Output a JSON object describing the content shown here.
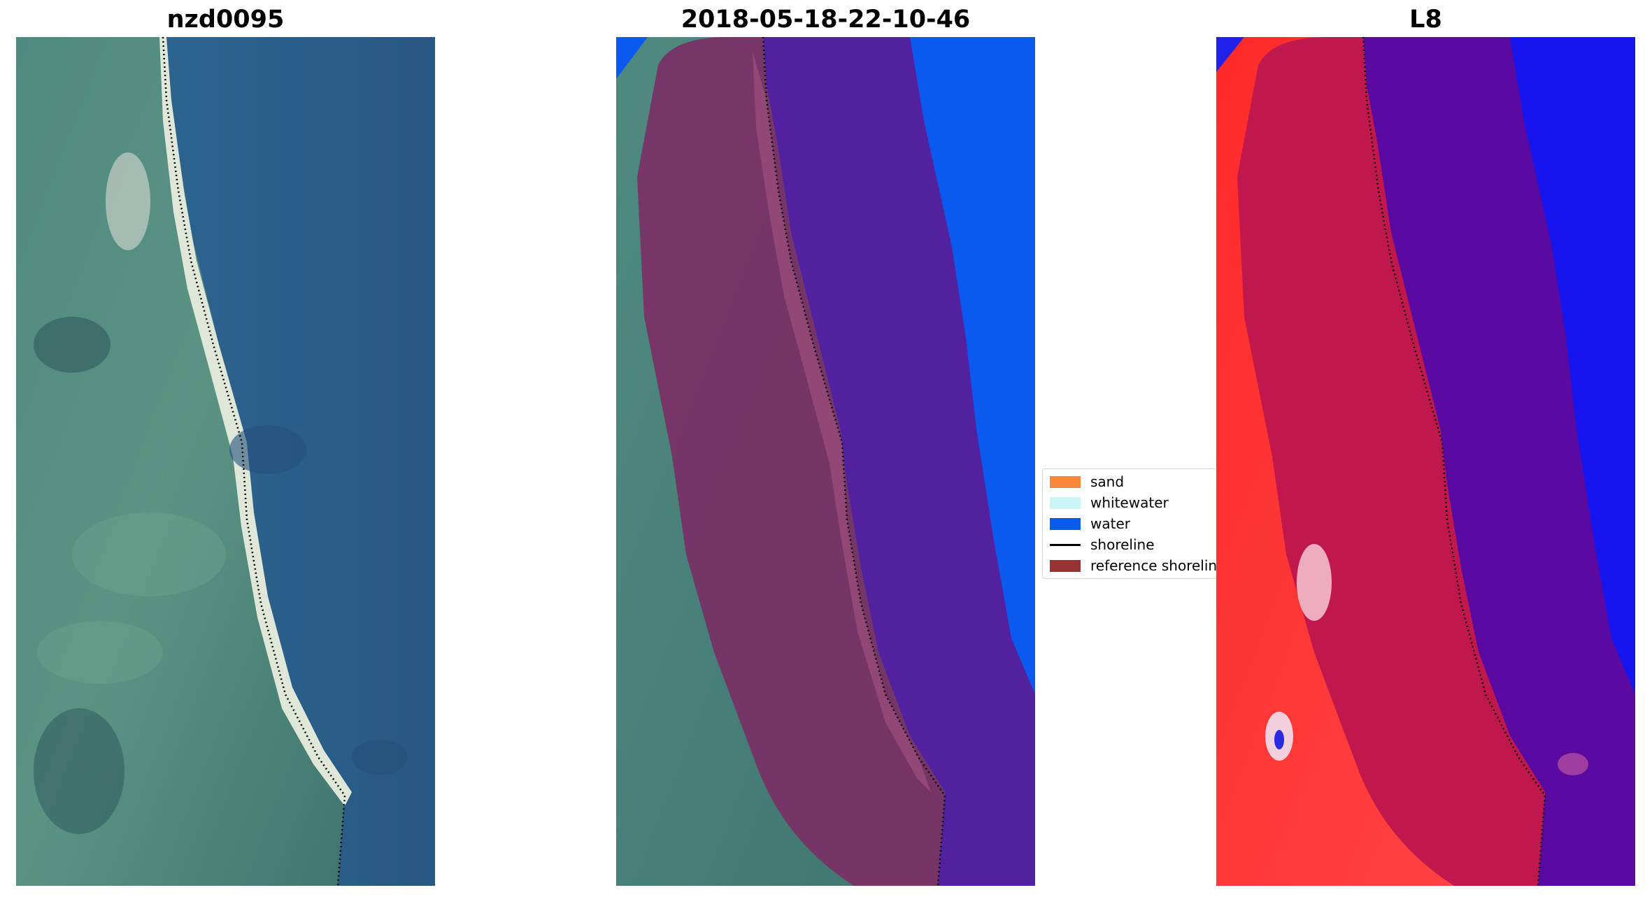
{
  "panels": {
    "rgb": {
      "title": "nzd0095"
    },
    "classified": {
      "title": "2018-05-18-22-10-46"
    },
    "mndwi": {
      "title": "L8"
    }
  },
  "legend": {
    "items": [
      {
        "label": "sand",
        "color": "#f7873a",
        "kind": "patch"
      },
      {
        "label": "whitewater",
        "color": "#ccf5f5",
        "kind": "patch"
      },
      {
        "label": "water",
        "color": "#0a5af0",
        "kind": "patch"
      },
      {
        "label": "shoreline",
        "color": "#000000",
        "kind": "line"
      },
      {
        "label": "reference shoreline",
        "color": "#993333",
        "kind": "patch"
      }
    ]
  },
  "colors": {
    "ocean": "#2b5d8c",
    "land": "#4f8a80",
    "beach": "#dfe8d8",
    "buffer_land": "#7b2f66",
    "buffer_water": "#5221a0",
    "classified_water": "#0a5af0",
    "index_land": "#ff3030",
    "index_buffer_land": "#c0184c",
    "index_buffer_water": "#5a0aa0",
    "index_water": "#1515f0"
  }
}
